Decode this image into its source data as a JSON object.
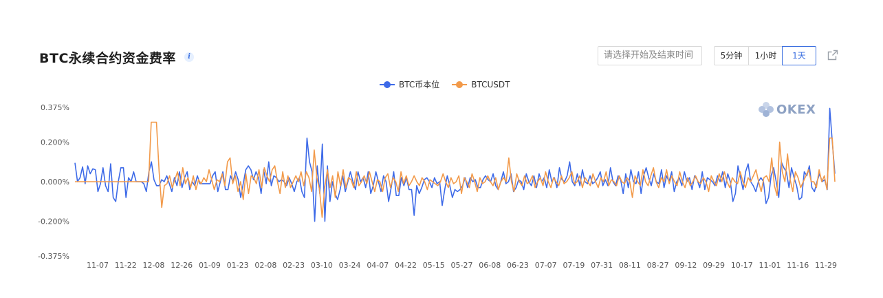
{
  "header": {
    "title": "BTC永续合约资金费率",
    "info_icon": "info-icon",
    "date_placeholder": "请选择开始及结束时间",
    "intervals": [
      "5分钟",
      "1小时",
      "1天"
    ],
    "active_interval": "1天",
    "share_icon": "share-icon"
  },
  "watermark": {
    "text": "OKEX",
    "icon": "okex-logo-icon"
  },
  "colors": {
    "coin_margined": "#3d6ae8",
    "usdt": "#f29a4a",
    "accent": "#3b6fe0"
  },
  "chart_data": {
    "type": "line",
    "title": "",
    "xlabel": "",
    "ylabel": "",
    "ylim": [
      -0.375,
      0.375
    ],
    "y_ticks": [
      "0.375%",
      "0.200%",
      "0.000%",
      "-0.200%",
      "-0.375%"
    ],
    "y_tick_values": [
      0.375,
      0.2,
      0.0,
      -0.2,
      -0.375
    ],
    "x_ticks": [
      "11-07",
      "11-22",
      "12-08",
      "12-26",
      "01-09",
      "01-23",
      "02-08",
      "02-23",
      "03-10",
      "03-24",
      "04-07",
      "04-22",
      "05-15",
      "05-27",
      "06-08",
      "06-23",
      "07-07",
      "07-19",
      "07-31",
      "08-11",
      "08-27",
      "09-12",
      "09-29",
      "10-17",
      "11-01",
      "11-16",
      "11-29"
    ],
    "grid": false,
    "legend": "top-center",
    "series": [
      {
        "name": "BTC币本位",
        "color": "#3d6ae8",
        "values": [
          0.095,
          0.0,
          0.02,
          0.075,
          -0.01,
          0.08,
          0.04,
          0.065,
          0.06,
          -0.05,
          -0.01,
          0.07,
          -0.02,
          -0.05,
          0.09,
          -0.08,
          -0.1,
          0.0,
          0.07,
          0.07,
          -0.08,
          0.02,
          0.0,
          0.05,
          0.0,
          0.0,
          0.0,
          -0.01,
          -0.05,
          0.05,
          0.1,
          0.01,
          -0.02,
          -0.02,
          0.01,
          0.0,
          0.03,
          -0.01,
          -0.05,
          0.02,
          -0.02,
          0.05,
          -0.03,
          0.02,
          0.05,
          -0.04,
          0.0,
          -0.02,
          0.03,
          -0.01,
          -0.01,
          -0.01,
          -0.01,
          -0.01,
          0.03,
          0.05,
          -0.05,
          0.0,
          0.05,
          -0.04,
          -0.04,
          0.03,
          0.0,
          0.05,
          0.01,
          -0.08,
          -0.01,
          0.06,
          0.08,
          0.06,
          0.01,
          0.05,
          0.02,
          -0.06,
          0.06,
          -0.01,
          0.1,
          -0.02,
          0.03,
          0.02,
          0.0,
          0.01,
          0.0,
          -0.02,
          0.02,
          -0.01,
          -0.05,
          0.0,
          0.02,
          -0.05,
          -0.08,
          0.22,
          0.1,
          0.05,
          -0.2,
          0.08,
          -0.06,
          0.19,
          -0.2,
          0.08,
          -0.1,
          0.0,
          -0.06,
          -0.09,
          -0.04,
          0.03,
          -0.05,
          0.0,
          0.05,
          0.0,
          -0.04,
          0.05,
          0.0,
          0.02,
          -0.03,
          0.05,
          -0.06,
          -0.02,
          0.05,
          0.0,
          -0.05,
          0.03,
          0.0,
          -0.1,
          -0.03,
          0.05,
          -0.07,
          -0.07,
          0.02,
          -0.02,
          0.02,
          -0.04,
          -0.04,
          -0.17,
          -0.02,
          -0.06,
          -0.03,
          0.01,
          0.02,
          0.0,
          -0.03,
          0.02,
          -0.01,
          0.0,
          -0.12,
          -0.04,
          0.03,
          -0.02,
          -0.08,
          -0.04,
          -0.05,
          -0.04,
          -0.02,
          0.02,
          -0.03,
          0.02,
          0.0,
          0.01,
          -0.03,
          -0.03,
          0.01,
          0.03,
          0.01,
          0.0,
          0.04,
          -0.02,
          -0.04,
          0.0,
          0.05,
          -0.01,
          0.0,
          0.04,
          -0.05,
          -0.03,
          0.01,
          0.0,
          -0.04,
          0.04,
          0.0,
          -0.02,
          0.03,
          -0.03,
          0.04,
          0.0,
          0.02,
          -0.03,
          0.06,
          0.0,
          0.02,
          -0.03,
          0.07,
          0.01,
          0.0,
          0.03,
          0.1,
          0.0,
          -0.02,
          0.04,
          -0.02,
          0.06,
          0.0,
          -0.01,
          0.03,
          -0.01,
          0.0,
          0.02,
          0.05,
          -0.02,
          0.01,
          -0.02,
          0.07,
          0.0,
          -0.02,
          0.03,
          0.01,
          -0.06,
          0.04,
          -0.03,
          0.06,
          0.0,
          -0.01,
          0.05,
          -0.06,
          0.03,
          0.07,
          0.02,
          -0.02,
          0.04,
          0.0,
          -0.01,
          0.06,
          -0.03,
          0.03,
          0.0,
          0.05,
          -0.05,
          0.0,
          0.02,
          -0.02,
          0.05,
          0.0,
          0.02,
          -0.04,
          0.03,
          0.01,
          -0.03,
          0.05,
          -0.04,
          0.02,
          0.01,
          0.0,
          -0.02,
          0.03,
          0.0,
          0.05,
          -0.03,
          0.04,
          0.0,
          -0.1,
          -0.06,
          0.08,
          0.02,
          -0.04,
          0.05,
          0.09,
          0.0,
          -0.02,
          -0.05,
          0.0,
          0.02,
          0.0,
          -0.11,
          -0.08,
          0.03,
          0.07,
          0.0,
          -0.08,
          0.1,
          0.07,
          0.05,
          -0.03,
          0.07,
          0.02,
          -0.02,
          -0.09,
          -0.08,
          0.05,
          0.03,
          0.08,
          -0.03,
          -0.05,
          0.0,
          0.04,
          0.0,
          0.01,
          -0.04,
          0.37,
          0.2,
          0.04
        ]
      },
      {
        "name": "BTCUSDT",
        "color": "#f29a4a",
        "values": [
          0.0,
          0.0,
          0.0,
          0.0,
          0.0,
          0.0,
          0.0,
          0.0,
          0.0,
          0.0,
          0.0,
          0.0,
          0.0,
          0.0,
          0.0,
          0.0,
          0.0,
          0.0,
          0.0,
          0.0,
          0.0,
          0.0,
          0.0,
          0.0,
          0.0,
          0.0,
          0.0,
          0.0,
          0.0,
          0.3,
          0.3,
          0.3,
          0.05,
          -0.13,
          -0.02,
          -0.01,
          0.03,
          -0.03,
          0.01,
          0.05,
          -0.02,
          0.07,
          -0.01,
          0.02,
          -0.03,
          0.03,
          -0.04,
          0.01,
          -0.01,
          0.02,
          0.0,
          0.06,
          0.01,
          -0.04,
          0.01,
          0.0,
          0.04,
          -0.02,
          0.1,
          0.12,
          -0.01,
          0.03,
          -0.05,
          0.0,
          -0.09,
          0.04,
          -0.06,
          0.03,
          0.02,
          -0.01,
          0.06,
          -0.03,
          0.07,
          0.03,
          0.0,
          0.06,
          0.08,
          0.0,
          -0.06,
          0.05,
          -0.03,
          0.03,
          -0.03,
          0.0,
          0.03,
          0.0,
          0.05,
          -0.02,
          0.05,
          0.02,
          -0.05,
          0.16,
          0.02,
          -0.04,
          -0.18,
          -0.03,
          0.06,
          -0.03,
          0.03,
          -0.08,
          0.05,
          -0.02,
          0.06,
          -0.03,
          0.02,
          0.01,
          -0.03,
          0.05,
          -0.02,
          0.0,
          0.03,
          -0.01,
          0.05,
          0.0,
          -0.05,
          0.01,
          0.0,
          -0.05,
          0.02,
          0.04,
          -0.03,
          0.02,
          0.0,
          -0.05,
          0.05,
          -0.01,
          0.03,
          -0.02,
          0.0,
          0.03,
          0.0,
          -0.02,
          0.02,
          0.0,
          -0.04,
          0.01,
          0.0,
          -0.01,
          -0.02,
          0.0,
          0.04,
          0.0,
          -0.03,
          0.02,
          -0.01,
          0.0,
          0.03,
          -0.06,
          0.02,
          0.0,
          -0.03,
          0.04,
          0.0,
          -0.05,
          0.02,
          -0.01,
          0.0,
          0.03,
          0.0,
          -0.02,
          0.02,
          -0.04,
          0.0,
          0.02,
          0.0,
          0.12,
          0.0,
          -0.05,
          0.04,
          0.0,
          -0.02,
          0.03,
          -0.01,
          0.0,
          0.03,
          -0.03,
          0.0,
          0.02,
          -0.02,
          0.05,
          0.0,
          -0.03,
          0.02,
          0.0,
          -0.02,
          0.03,
          -0.01,
          0.0,
          0.02,
          0.05,
          -0.01,
          0.0,
          0.03,
          -0.03,
          0.02,
          0.0,
          -0.02,
          0.04,
          0.0,
          -0.03,
          0.02,
          0.0,
          0.05,
          -0.02,
          0.01,
          0.0,
          -0.02,
          0.03,
          0.0,
          -0.01,
          0.02,
          0.0,
          -0.08,
          0.03,
          0.0,
          -0.02,
          0.06,
          0.0,
          -0.02,
          0.03,
          0.07,
          0.0,
          -0.03,
          0.02,
          0.0,
          0.06,
          -0.01,
          0.03,
          0.0,
          -0.02,
          0.05,
          0.0,
          -0.03,
          0.02,
          -0.02,
          0.0,
          0.03,
          0.0,
          -0.01,
          0.02,
          0.0,
          -0.05,
          0.03,
          0.0,
          -0.02,
          0.04,
          0.0,
          0.05,
          0.0,
          -0.03,
          0.02,
          0.0,
          -0.01,
          0.05,
          0.0,
          -0.03,
          0.02,
          0.0,
          0.03,
          0.06,
          0.0,
          -0.05,
          0.02,
          0.03,
          0.0,
          0.12,
          -0.02,
          -0.07,
          0.2,
          0.05,
          0.0,
          0.14,
          0.01,
          -0.05,
          0.05,
          0.02,
          -0.03,
          0.0,
          0.03,
          0.06,
          0.0,
          0.0,
          -0.03,
          0.06,
          0.0,
          0.03,
          -0.04,
          0.22,
          0.22,
          0.0
        ]
      }
    ]
  }
}
